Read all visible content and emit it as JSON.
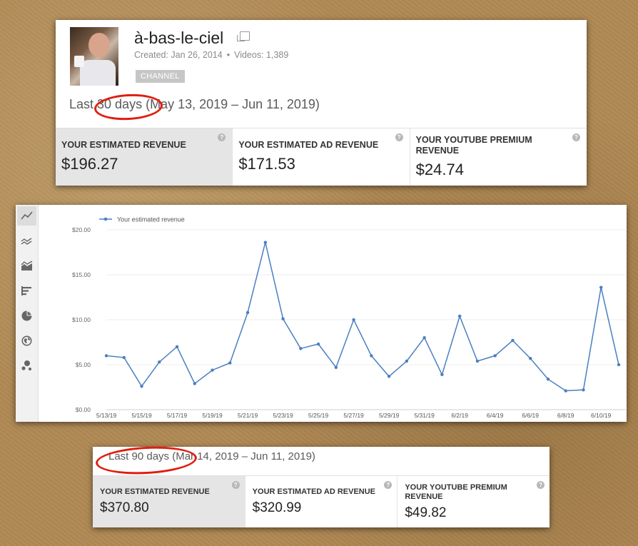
{
  "channel": {
    "title": "à-bas-le-ciel",
    "created": "Created: Jan 26, 2014",
    "meta_sep": "•",
    "videos": "Videos: 1,389",
    "badge": "CHANNEL"
  },
  "period_30": {
    "label": "Last 30 days (May 13, 2019 – Jun 11, 2019)"
  },
  "cards_30": [
    {
      "label": "YOUR ESTIMATED REVENUE",
      "value": "$196.27"
    },
    {
      "label": "YOUR ESTIMATED AD REVENUE",
      "value": "$171.53"
    },
    {
      "label": "YOUR YOUTUBE PREMIUM REVENUE",
      "value": "$24.74"
    }
  ],
  "help_glyph": "?",
  "toolbar": {
    "icons": [
      "line-chart-icon",
      "multi-line-chart-icon",
      "stacked-area-chart-icon",
      "bar-chart-icon",
      "pie-chart-icon",
      "globe-map-icon",
      "bubble-chart-icon"
    ]
  },
  "chart_data": {
    "type": "line",
    "series": [
      {
        "name": "Your estimated revenue",
        "color": "#4a7fc1",
        "values": [
          6.0,
          5.8,
          2.6,
          5.3,
          7.0,
          2.9,
          4.4,
          5.2,
          10.8,
          18.6,
          10.1,
          6.8,
          7.3,
          4.7,
          10.0,
          6.0,
          3.7,
          5.4,
          8.0,
          3.9,
          10.4,
          5.4,
          6.0,
          7.7,
          5.7,
          3.4,
          2.1,
          2.2,
          13.6,
          5.0
        ]
      }
    ],
    "x": [
      "5/13/19",
      "5/14/19",
      "5/15/19",
      "5/16/19",
      "5/17/19",
      "5/18/19",
      "5/19/19",
      "5/20/19",
      "5/21/19",
      "5/22/19",
      "5/23/19",
      "5/24/19",
      "5/25/19",
      "5/26/19",
      "5/27/19",
      "5/28/19",
      "5/29/19",
      "5/30/19",
      "5/31/19",
      "6/1/19",
      "6/2/19",
      "6/3/19",
      "6/4/19",
      "6/5/19",
      "6/6/19",
      "6/7/19",
      "6/8/19",
      "6/9/19",
      "6/10/19",
      "6/11/19"
    ],
    "x_tick_labels": [
      "5/13/19",
      "5/15/19",
      "5/17/19",
      "5/19/19",
      "5/21/19",
      "5/23/19",
      "5/25/19",
      "5/27/19",
      "5/29/19",
      "5/31/19",
      "6/2/19",
      "6/4/19",
      "6/6/19",
      "6/8/19",
      "6/10/19"
    ],
    "y_tick_labels": [
      "$0.00",
      "$5.00",
      "$10.00",
      "$15.00",
      "$20.00"
    ],
    "ylim": [
      0,
      20
    ],
    "grid": true,
    "legend_position": "top-left"
  },
  "period_90": {
    "label": "Last 90 days (Mar 14, 2019 – Jun 11, 2019)"
  },
  "cards_90": [
    {
      "label": "YOUR ESTIMATED REVENUE",
      "value": "$370.80"
    },
    {
      "label": "YOUR ESTIMATED AD REVENUE",
      "value": "$320.99"
    },
    {
      "label": "YOUR YOUTUBE PREMIUM REVENUE",
      "value": "$49.82"
    }
  ]
}
